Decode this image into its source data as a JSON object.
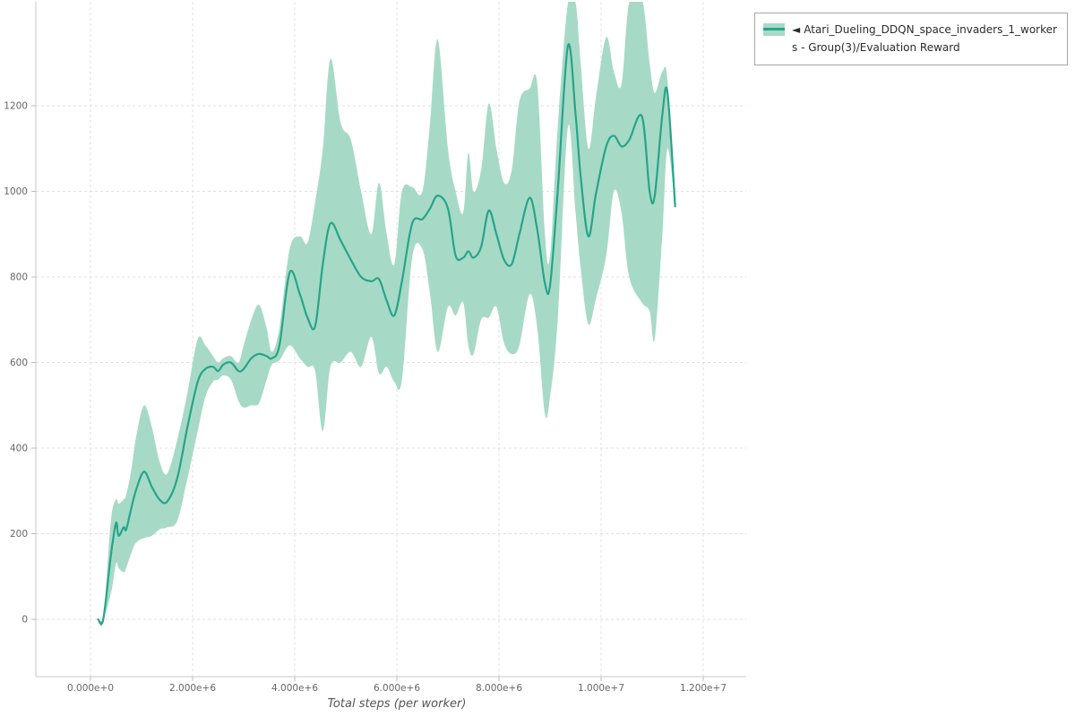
{
  "legend": {
    "marker": "◄",
    "label": "Atari_Dueling_DDQN_space_invaders_1_workers - Group(3)/Evaluation Reward"
  },
  "axes": {
    "x_label": "Total steps (per worker)",
    "x_ticks": [
      {
        "value": 0,
        "label": "0.000e+0"
      },
      {
        "value": 2000000,
        "label": "2.000e+6"
      },
      {
        "value": 4000000,
        "label": "4.000e+6"
      },
      {
        "value": 6000000,
        "label": "6.000e+6"
      },
      {
        "value": 8000000,
        "label": "8.000e+6"
      },
      {
        "value": 10000000,
        "label": "1.000e+7"
      },
      {
        "value": 12000000,
        "label": "1.200e+7"
      }
    ],
    "y_ticks": [
      {
        "value": 0,
        "label": "0"
      },
      {
        "value": 200,
        "label": "200"
      },
      {
        "value": 400,
        "label": "400"
      },
      {
        "value": 600,
        "label": "600"
      },
      {
        "value": 800,
        "label": "800"
      },
      {
        "value": 1000,
        "label": "1000"
      },
      {
        "value": 1200,
        "label": "1200"
      }
    ]
  },
  "colors": {
    "line": "#27a489",
    "band": "#a6dac6",
    "grid": "#e0e0e0",
    "axis": "#c9c9c9",
    "tick": "#bbbbbb",
    "tick_text": "#666666",
    "axis_label_text": "#555555",
    "legend_border": "#a6a6a6",
    "legend_text": "#2b2b2b"
  },
  "chart_data": {
    "type": "line",
    "title": "",
    "xlabel": "Total steps (per worker)",
    "ylabel": "",
    "legend_position": "top-right",
    "grid": true,
    "xlim": [
      0,
      12000000
    ],
    "ylim": [
      0,
      1200
    ],
    "series": [
      {
        "name": "Atari_Dueling_DDQN_space_invaders_1_workers - Group(3)/Evaluation Reward",
        "x": [
          150000,
          250000,
          400000,
          500000,
          550000,
          650000,
          700000,
          800000,
          900000,
          1050000,
          1200000,
          1350000,
          1500000,
          1700000,
          1900000,
          2100000,
          2250000,
          2400000,
          2500000,
          2600000,
          2750000,
          2900000,
          3000000,
          3150000,
          3300000,
          3450000,
          3550000,
          3700000,
          3900000,
          4100000,
          4250000,
          4400000,
          4550000,
          4700000,
          4900000,
          5100000,
          5300000,
          5500000,
          5650000,
          5800000,
          5950000,
          6100000,
          6300000,
          6500000,
          6650000,
          6800000,
          7000000,
          7150000,
          7300000,
          7400000,
          7500000,
          7650000,
          7800000,
          7950000,
          8100000,
          8250000,
          8400000,
          8600000,
          8750000,
          8900000,
          9000000,
          9150000,
          9350000,
          9500000,
          9600000,
          9750000,
          9900000,
          10100000,
          10250000,
          10400000,
          10550000,
          10800000,
          10950000,
          11050000,
          11200000,
          11300000,
          11450000
        ],
        "mean": [
          0,
          0,
          150,
          225,
          195,
          215,
          210,
          260,
          305,
          345,
          310,
          280,
          275,
          330,
          450,
          555,
          585,
          590,
          580,
          595,
          600,
          580,
          585,
          610,
          620,
          615,
          610,
          640,
          810,
          760,
          705,
          685,
          830,
          925,
          885,
          840,
          800,
          790,
          795,
          745,
          710,
          790,
          925,
          935,
          960,
          990,
          960,
          850,
          845,
          860,
          845,
          870,
          955,
          900,
          840,
          830,
          900,
          985,
          910,
          785,
          780,
          1000,
          1340,
          1180,
          1035,
          895,
          995,
          1105,
          1130,
          1105,
          1120,
          1175,
          1000,
          990,
          1180,
          1230,
          965
        ],
        "band_upper": [
          0,
          0,
          230,
          280,
          270,
          280,
          290,
          350,
          430,
          500,
          450,
          370,
          340,
          420,
          530,
          655,
          640,
          615,
          600,
          610,
          615,
          600,
          640,
          700,
          735,
          680,
          625,
          680,
          865,
          895,
          880,
          975,
          1100,
          1310,
          1160,
          1120,
          1000,
          900,
          1020,
          900,
          830,
          1000,
          1010,
          1000,
          1160,
          1355,
          1100,
          1000,
          950,
          1090,
          1000,
          1050,
          1205,
          1100,
          1020,
          1050,
          1210,
          1240,
          1250,
          900,
          850,
          1150,
          1440,
          1440,
          1300,
          1100,
          1220,
          1360,
          1280,
          1250,
          1440,
          1450,
          1300,
          1230,
          1280,
          1260,
          965
        ],
        "band_lower": [
          0,
          0,
          60,
          130,
          120,
          110,
          120,
          155,
          180,
          190,
          195,
          210,
          215,
          230,
          330,
          440,
          520,
          555,
          560,
          570,
          560,
          510,
          495,
          500,
          505,
          560,
          595,
          605,
          640,
          610,
          590,
          580,
          440,
          590,
          600,
          625,
          590,
          660,
          575,
          590,
          555,
          560,
          845,
          865,
          760,
          625,
          730,
          710,
          740,
          640,
          620,
          700,
          705,
          730,
          645,
          620,
          640,
          760,
          680,
          480,
          520,
          700,
          1150,
          950,
          820,
          690,
          750,
          850,
          1000,
          950,
          800,
          740,
          720,
          655,
          900,
          1100,
          965
        ]
      }
    ]
  }
}
